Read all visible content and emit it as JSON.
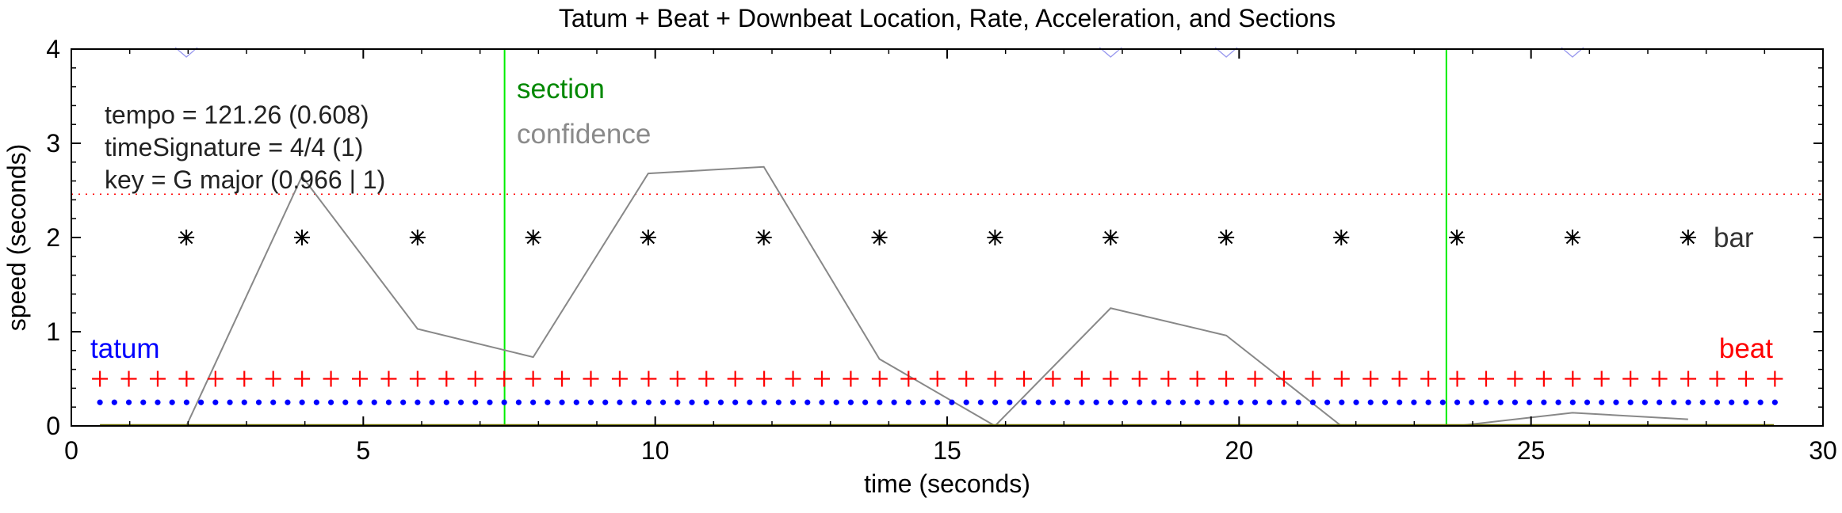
{
  "chart_data": {
    "type": "scatter",
    "title": "Tatum + Beat + Downbeat Location, Rate, Acceleration, and Sections",
    "xlabel": "time (seconds)",
    "ylabel": "speed (seconds)",
    "xlim": [
      0,
      30
    ],
    "ylim": [
      0,
      4
    ],
    "xticks": [
      0,
      5,
      10,
      15,
      20,
      25,
      30
    ],
    "yticks": [
      0,
      1,
      2,
      3,
      4
    ],
    "grid": false,
    "annotations": [
      "tempo = 121.26 (0.608)",
      "timeSignature = 4/4 (1)",
      "key = G major (0.966 | 1)"
    ],
    "section_label": "section",
    "confidence_label": "confidence",
    "series": [
      {
        "name": "bar",
        "marker": "asterisk",
        "color": "#000000",
        "y": 2.0,
        "x": [
          1.97,
          3.95,
          5.93,
          7.91,
          9.88,
          11.86,
          13.84,
          15.82,
          17.8,
          19.78,
          21.75,
          23.73,
          25.71,
          27.69
        ]
      },
      {
        "name": "beat",
        "marker": "plus",
        "color": "#ff0000",
        "y": 0.5,
        "x_start": 0.49,
        "x_step": 0.4946,
        "count": 59
      },
      {
        "name": "tatum",
        "marker": "dot",
        "color": "#0000ff",
        "y": 0.25,
        "x_start": 0.49,
        "x_step": 0.2473,
        "count": 117
      }
    ],
    "confidence_series": {
      "color": "#888888",
      "x": [
        1.97,
        3.95,
        5.93,
        7.91,
        9.88,
        11.86,
        13.84,
        15.82,
        17.8,
        19.78,
        21.75,
        23.73,
        25.71,
        27.69
      ],
      "y": [
        0.0,
        2.65,
        1.03,
        0.73,
        2.68,
        2.75,
        0.71,
        0.0,
        1.25,
        0.96,
        0.0,
        0.0,
        0.14,
        0.07
      ]
    },
    "sections": {
      "color": "#00ee00",
      "x": [
        7.42,
        23.55
      ]
    },
    "reference_line": {
      "color": "#ff0000",
      "style": "dotted",
      "y": 2.46
    },
    "baseline_line": {
      "color": "#6b6b00",
      "y": 0.0,
      "x_start": 0.49,
      "x_end": 29.16
    },
    "top_marks": {
      "color": "#9999ee",
      "x": [
        1.97,
        17.8,
        19.78,
        25.71
      ]
    }
  }
}
